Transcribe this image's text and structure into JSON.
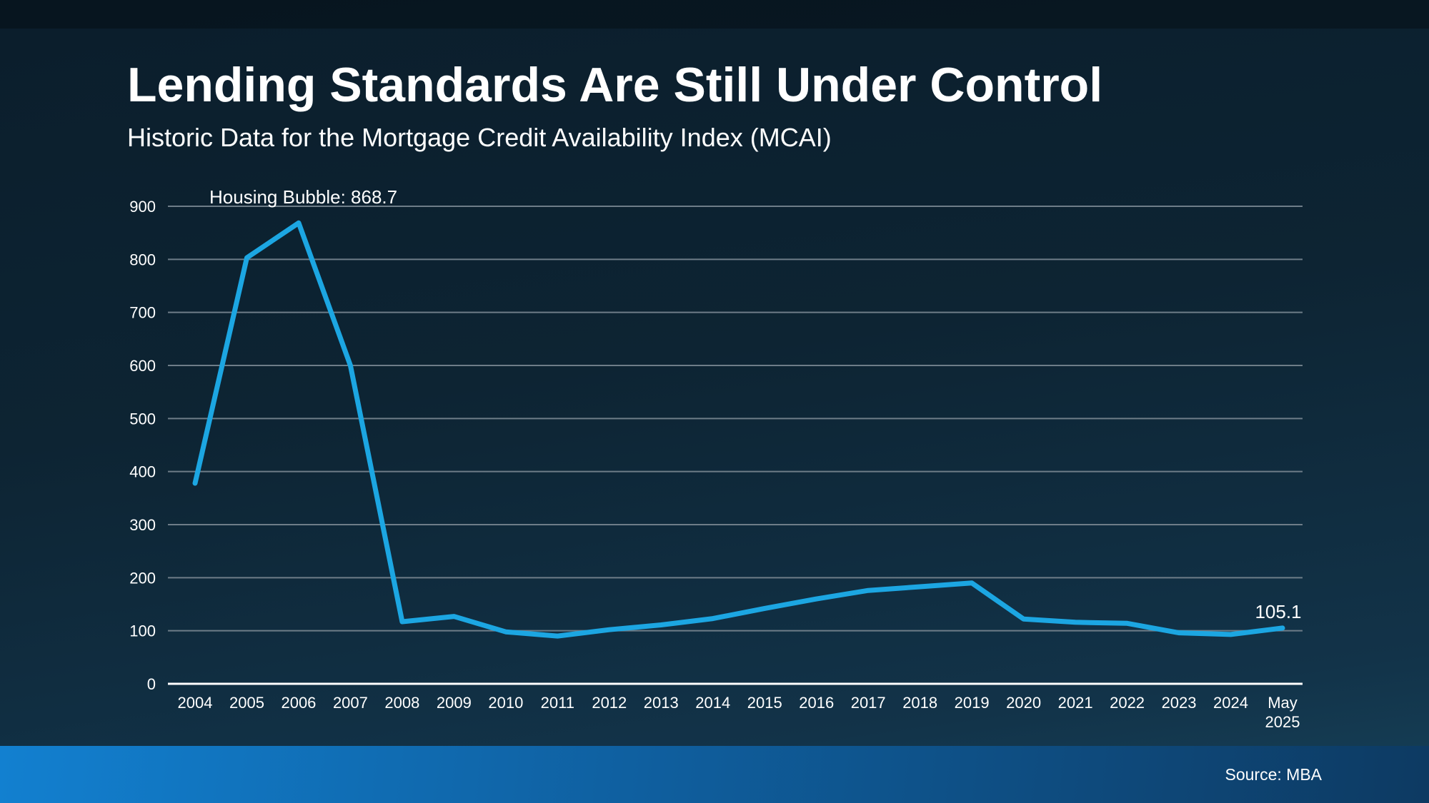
{
  "header": {
    "title": "Lending Standards Are Still Under Control",
    "subtitle": "Historic Data for the Mortgage Credit Availability Index (MCAI)"
  },
  "chart_data": {
    "type": "line",
    "categories": [
      "2004",
      "2005",
      "2006",
      "2007",
      "2008",
      "2009",
      "2010",
      "2011",
      "2012",
      "2013",
      "2014",
      "2015",
      "2016",
      "2017",
      "2018",
      "2019",
      "2020",
      "2021",
      "2022",
      "2023",
      "2024",
      "May 2025"
    ],
    "values": [
      378,
      803,
      868.7,
      600,
      117,
      127,
      98,
      90,
      102,
      111,
      123,
      142,
      160,
      176,
      183,
      190,
      122,
      116,
      114,
      96,
      93,
      105.1
    ],
    "ylim": [
      0,
      900
    ],
    "ytick_step": 100,
    "grid": true,
    "legend": "none",
    "annotations": {
      "peak_label": "Housing Bubble: 868.7",
      "latest_label": "105.1"
    }
  },
  "footer": {
    "source": "Source: MBA"
  },
  "colors": {
    "background_top": "#081723",
    "background_main": "#0d2433",
    "background_bottom": "#164159",
    "line": "#1ca6e2",
    "grid": "#6e7d88",
    "axis": "#ffffff",
    "text": "#ffffff",
    "footer_bar_left": "#1280d0",
    "footer_bar_right": "#0d3a62"
  }
}
